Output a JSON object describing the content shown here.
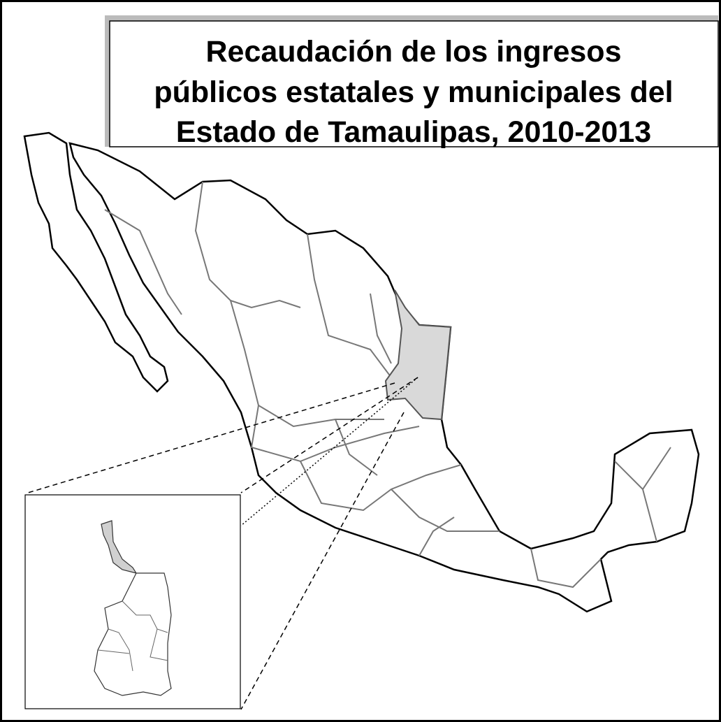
{
  "title": {
    "lines": [
      "Recaudación de los ingresos",
      "públicos estatales y municipales del",
      "Estado de Tamaulipas, 2010-2013"
    ]
  }
}
